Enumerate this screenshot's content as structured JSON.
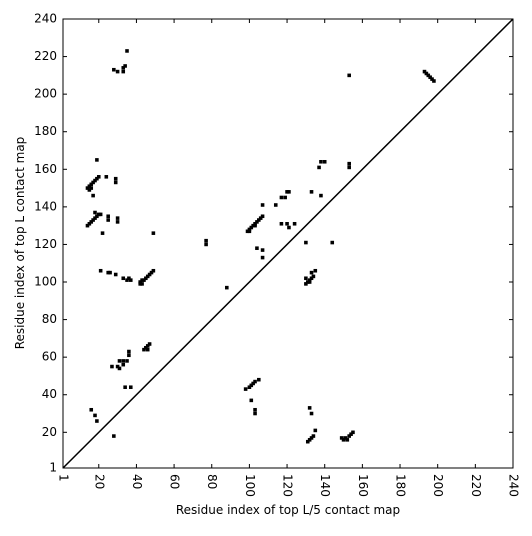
{
  "chart_data": {
    "type": "scatter",
    "xlabel": "Residue index of top L/5 contact map",
    "ylabel": "Residue index of top L contact map",
    "xlim": [
      1,
      240
    ],
    "ylim": [
      1,
      240
    ],
    "xticks": [
      1,
      20,
      40,
      60,
      80,
      100,
      120,
      140,
      160,
      180,
      200,
      220,
      240
    ],
    "yticks": [
      1,
      20,
      40,
      60,
      80,
      100,
      120,
      140,
      160,
      180,
      200,
      220,
      240
    ],
    "color": "#000000",
    "series": [
      {
        "x": [
          14,
          15,
          16,
          17,
          18,
          19,
          20,
          15,
          16,
          14,
          15,
          16,
          17,
          18,
          19,
          20,
          21,
          18,
          19,
          17,
          24,
          29,
          29,
          25,
          25,
          30,
          30,
          22,
          49,
          28,
          30,
          33,
          34,
          33,
          35,
          42,
          42,
          43,
          44,
          45,
          46,
          47,
          48,
          49,
          43,
          21,
          25,
          26,
          29,
          33,
          35,
          37,
          36,
          44,
          45,
          46,
          47,
          46,
          36,
          36,
          35,
          31,
          33,
          30,
          31,
          27,
          33,
          34,
          37,
          16,
          18,
          19,
          28,
          77,
          77,
          88,
          193,
          194,
          195,
          196,
          197,
          198,
          99,
          100,
          101,
          102,
          103,
          104,
          105,
          106,
          107,
          100,
          103,
          104,
          107,
          107,
          107,
          114,
          117,
          119,
          120,
          121,
          117,
          120,
          121,
          124,
          130,
          144,
          137,
          138,
          140,
          138,
          153,
          153,
          133,
          130,
          131,
          132,
          133,
          134,
          133,
          135,
          132,
          130,
          100,
          101,
          102,
          103,
          105,
          98,
          101,
          103,
          103,
          131,
          132,
          133,
          134,
          135,
          133,
          132,
          149,
          150,
          151,
          152,
          153,
          154,
          155,
          153
        ],
        "y": [
          150,
          151,
          152,
          153,
          154,
          155,
          156,
          149,
          150,
          130,
          131,
          132,
          133,
          134,
          135,
          136,
          136,
          137,
          165,
          146,
          156,
          155,
          153,
          135,
          133,
          134,
          132,
          126,
          126,
          213,
          212,
          214,
          215,
          212,
          223,
          99,
          100,
          101,
          101,
          102,
          103,
          104,
          105,
          106,
          99,
          106,
          105,
          105,
          104,
          102,
          101,
          101,
          102,
          64,
          65,
          66,
          67,
          64,
          63,
          61,
          58,
          58,
          58,
          55,
          54,
          55,
          56,
          44,
          44,
          32,
          29,
          26,
          18,
          122,
          120,
          97,
          212,
          211,
          210,
          209,
          208,
          207,
          127,
          128,
          129,
          130,
          131,
          132,
          133,
          134,
          135,
          127,
          130,
          118,
          117,
          113,
          141,
          141,
          145,
          145,
          148,
          148,
          131,
          131,
          129,
          131,
          121,
          121,
          161,
          164,
          164,
          146,
          163,
          161,
          148,
          99,
          100,
          101,
          102,
          103,
          105,
          106,
          100,
          102,
          44,
          45,
          46,
          47,
          48,
          43,
          37,
          32,
          30,
          15,
          16,
          17,
          18,
          21,
          30,
          33,
          17,
          16,
          17,
          16,
          18,
          19,
          20,
          210
        ]
      }
    ]
  }
}
